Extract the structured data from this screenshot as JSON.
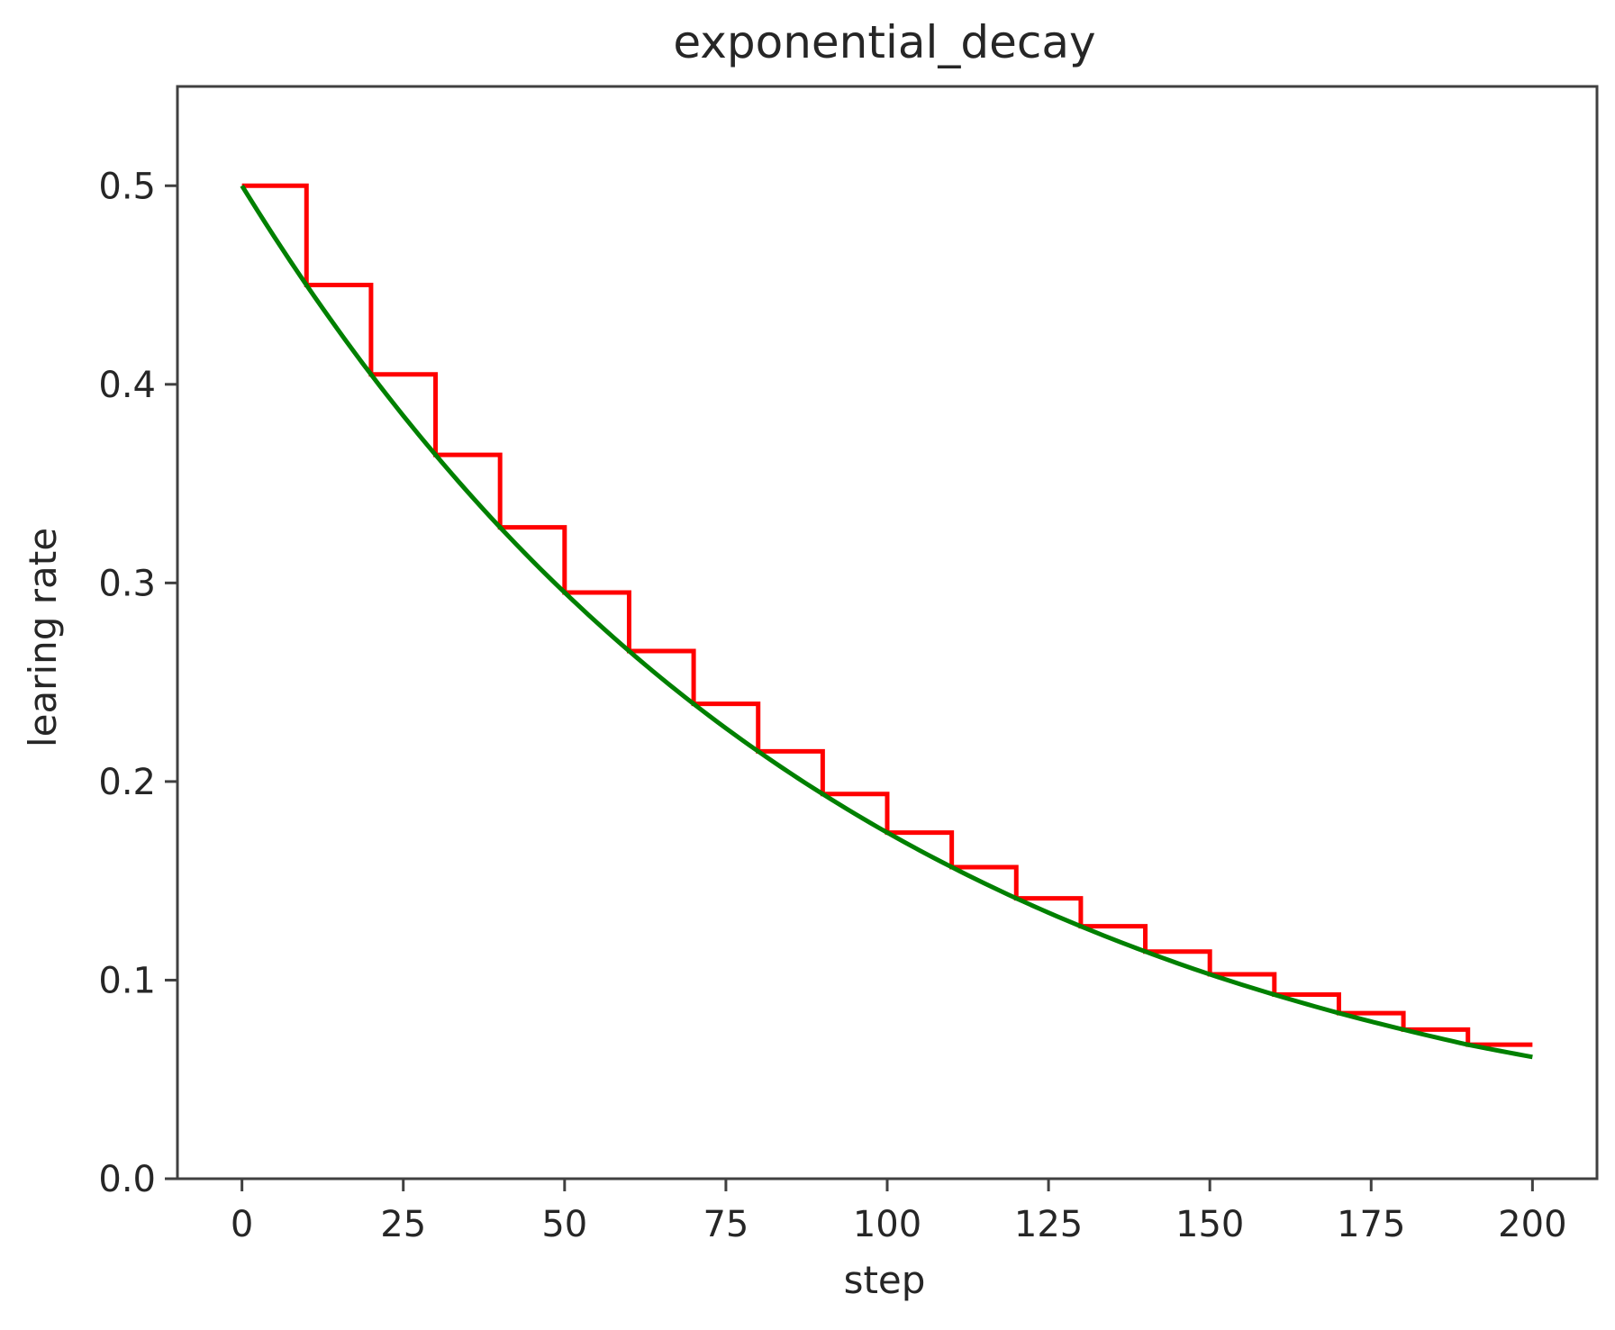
{
  "chart_data": {
    "type": "line",
    "title": "exponential_decay",
    "xlabel": "step",
    "ylabel": "learing rate",
    "xlim": [
      -10,
      210
    ],
    "ylim": [
      0.0,
      0.55
    ],
    "xticks": [
      0,
      25,
      50,
      75,
      100,
      125,
      150,
      175,
      200
    ],
    "xtick_labels": [
      "0",
      "25",
      "50",
      "75",
      "100",
      "125",
      "150",
      "175",
      "200"
    ],
    "yticks": [
      0.0,
      0.1,
      0.2,
      0.3,
      0.4,
      0.5
    ],
    "ytick_labels": [
      "0.0",
      "0.1",
      "0.2",
      "0.3",
      "0.4",
      "0.5"
    ],
    "grid": false,
    "legend": false,
    "series": [
      {
        "style": "step",
        "color": "#ff0000",
        "x": [
          0,
          10,
          20,
          30,
          40,
          50,
          60,
          70,
          80,
          90,
          100,
          110,
          120,
          130,
          140,
          150,
          160,
          170,
          180,
          190,
          200
        ],
        "values": [
          0.5,
          0.45,
          0.405,
          0.3645,
          0.328,
          0.2952,
          0.2657,
          0.2391,
          0.2152,
          0.1937,
          0.1743,
          0.1569,
          0.1412,
          0.1271,
          0.1144,
          0.1029,
          0.0927,
          0.0834,
          0.0751,
          0.0675,
          0.0675
        ]
      },
      {
        "style": "smooth",
        "color": "#008000",
        "x": [
          0,
          10,
          20,
          30,
          40,
          50,
          60,
          70,
          80,
          90,
          100,
          110,
          120,
          130,
          140,
          150,
          160,
          170,
          180,
          190,
          200
        ],
        "values": [
          0.5,
          0.45,
          0.405,
          0.3645,
          0.328,
          0.2952,
          0.2657,
          0.2391,
          0.2152,
          0.1937,
          0.1743,
          0.1569,
          0.1412,
          0.1271,
          0.1144,
          0.1029,
          0.0927,
          0.0834,
          0.0751,
          0.0675,
          0.0613
        ]
      }
    ]
  }
}
